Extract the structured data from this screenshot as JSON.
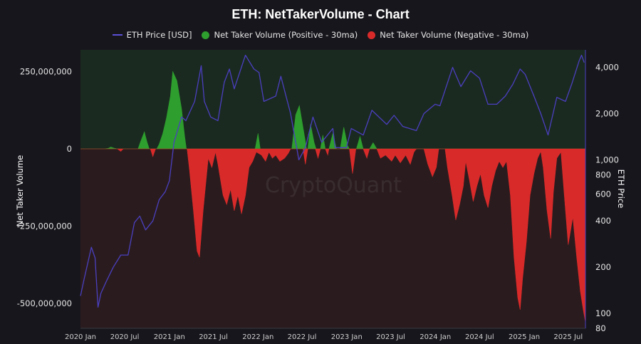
{
  "chart_data": {
    "type": "area",
    "title": "ETH: NetTakerVolume - Chart",
    "watermark": "CryptoQuant",
    "ylabel_left": "Net Taker Volume",
    "ylabel_right": "ETH Price",
    "legend_placement": "top-center",
    "grid": false,
    "y_left": {
      "min": -580000000,
      "max": 320000000,
      "ticks": [
        250000000,
        0,
        -250000000,
        -500000000
      ],
      "tick_labels": [
        "250,000,000",
        "0",
        "-250,000,000",
        "-500,000,000"
      ]
    },
    "y_right": {
      "scale": "log",
      "min": 80,
      "max": 5200,
      "ticks": [
        100,
        200,
        400,
        600,
        800,
        1000,
        2000,
        4000
      ],
      "tick_labels": [
        "100",
        "200",
        "400",
        "600",
        "800",
        "1,000",
        "2,000",
        "4,000"
      ]
    },
    "x": {
      "min": "2020-01-01",
      "max": "2025-09-10",
      "ticks": [
        "2020-01-01",
        "2020-07-01",
        "2021-01-01",
        "2021-07-01",
        "2022-01-01",
        "2022-07-01",
        "2023-01-01",
        "2023-07-01",
        "2024-01-01",
        "2024-07-01",
        "2025-01-01",
        "2025-07-01"
      ],
      "tick_labels": [
        "2020 Jan",
        "2020 Jul",
        "2021 Jan",
        "2021 Jul",
        "2022 Jan",
        "2022 Jul",
        "2023 Jan",
        "2023 Jul",
        "2024 Jan",
        "2024 Jul",
        "2025 Jan",
        "2025 Jul"
      ]
    },
    "series": [
      {
        "name": "ETH Price [USD]",
        "type": "line",
        "axis": "right",
        "color": "#4b3fc0",
        "points": [
          [
            "2020-01-01",
            130
          ],
          [
            "2020-01-15",
            165
          ],
          [
            "2020-02-15",
            270
          ],
          [
            "2020-03-01",
            230
          ],
          [
            "2020-03-13",
            110
          ],
          [
            "2020-03-25",
            135
          ],
          [
            "2020-04-15",
            160
          ],
          [
            "2020-05-15",
            200
          ],
          [
            "2020-06-15",
            240
          ],
          [
            "2020-07-15",
            240
          ],
          [
            "2020-08-10",
            390
          ],
          [
            "2020-09-01",
            430
          ],
          [
            "2020-09-25",
            350
          ],
          [
            "2020-10-25",
            400
          ],
          [
            "2020-11-20",
            550
          ],
          [
            "2020-12-15",
            620
          ],
          [
            "2021-01-01",
            730
          ],
          [
            "2021-01-20",
            1300
          ],
          [
            "2021-02-20",
            1900
          ],
          [
            "2021-03-10",
            1800
          ],
          [
            "2021-04-15",
            2400
          ],
          [
            "2021-05-12",
            4100
          ],
          [
            "2021-05-25",
            2400
          ],
          [
            "2021-06-20",
            1900
          ],
          [
            "2021-07-20",
            1800
          ],
          [
            "2021-08-15",
            3200
          ],
          [
            "2021-09-05",
            3900
          ],
          [
            "2021-09-25",
            2900
          ],
          [
            "2021-11-10",
            4800
          ],
          [
            "2021-12-15",
            3900
          ],
          [
            "2022-01-05",
            3700
          ],
          [
            "2022-01-25",
            2400
          ],
          [
            "2022-03-15",
            2600
          ],
          [
            "2022-04-05",
            3500
          ],
          [
            "2022-05-15",
            2000
          ],
          [
            "2022-06-18",
            1000
          ],
          [
            "2022-07-15",
            1200
          ],
          [
            "2022-08-15",
            1900
          ],
          [
            "2022-09-20",
            1300
          ],
          [
            "2022-11-05",
            1600
          ],
          [
            "2022-11-15",
            1200
          ],
          [
            "2022-12-31",
            1200
          ],
          [
            "2023-01-20",
            1600
          ],
          [
            "2023-03-10",
            1450
          ],
          [
            "2023-04-15",
            2100
          ],
          [
            "2023-06-15",
            1700
          ],
          [
            "2023-07-15",
            1950
          ],
          [
            "2023-08-20",
            1650
          ],
          [
            "2023-10-15",
            1550
          ],
          [
            "2023-11-15",
            2000
          ],
          [
            "2023-12-31",
            2300
          ],
          [
            "2024-01-20",
            2250
          ],
          [
            "2024-03-12",
            4000
          ],
          [
            "2024-04-15",
            3000
          ],
          [
            "2024-05-25",
            3800
          ],
          [
            "2024-07-01",
            3400
          ],
          [
            "2024-08-05",
            2300
          ],
          [
            "2024-09-10",
            2300
          ],
          [
            "2024-10-15",
            2600
          ],
          [
            "2024-11-15",
            3100
          ],
          [
            "2024-12-15",
            3900
          ],
          [
            "2025-01-05",
            3600
          ],
          [
            "2025-02-10",
            2600
          ],
          [
            "2025-03-10",
            2000
          ],
          [
            "2025-04-09",
            1450
          ],
          [
            "2025-05-15",
            2550
          ],
          [
            "2025-06-20",
            2400
          ],
          [
            "2025-07-15",
            3100
          ],
          [
            "2025-08-15",
            4400
          ],
          [
            "2025-08-25",
            4800
          ],
          [
            "2025-09-05",
            4300
          ]
        ]
      },
      {
        "name": "Net Taker Volume (Positive - 30ma)",
        "type": "area",
        "axis": "left",
        "color": "#2e9e2e",
        "points": [
          [
            "2020-01-01",
            0
          ],
          [
            "2020-04-10",
            0
          ],
          [
            "2020-04-25",
            2000000
          ],
          [
            "2020-05-05",
            6000000
          ],
          [
            "2020-05-20",
            2000000
          ],
          [
            "2020-06-01",
            0
          ],
          [
            "2020-08-25",
            0
          ],
          [
            "2020-09-05",
            25000000
          ],
          [
            "2020-09-20",
            55000000
          ],
          [
            "2020-09-30",
            25000000
          ],
          [
            "2020-10-10",
            0
          ],
          [
            "2020-11-10",
            0
          ],
          [
            "2020-11-20",
            15000000
          ],
          [
            "2020-12-05",
            50000000
          ],
          [
            "2020-12-20",
            100000000
          ],
          [
            "2021-01-05",
            170000000
          ],
          [
            "2021-01-15",
            250000000
          ],
          [
            "2021-02-01",
            220000000
          ],
          [
            "2021-02-20",
            130000000
          ],
          [
            "2021-03-05",
            40000000
          ],
          [
            "2021-03-12",
            0
          ],
          [
            "2021-12-20",
            0
          ],
          [
            "2022-01-01",
            50000000
          ],
          [
            "2022-01-10",
            0
          ],
          [
            "2022-05-20",
            0
          ],
          [
            "2022-06-05",
            110000000
          ],
          [
            "2022-06-20",
            140000000
          ],
          [
            "2022-07-05",
            70000000
          ],
          [
            "2022-07-20",
            0
          ],
          [
            "2022-07-25",
            0
          ],
          [
            "2022-08-05",
            80000000
          ],
          [
            "2022-08-20",
            20000000
          ],
          [
            "2022-08-28",
            0
          ],
          [
            "2022-09-15",
            0
          ],
          [
            "2022-09-25",
            45000000
          ],
          [
            "2022-10-05",
            0
          ],
          [
            "2022-10-20",
            0
          ],
          [
            "2022-11-05",
            50000000
          ],
          [
            "2022-11-20",
            0
          ],
          [
            "2022-12-05",
            0
          ],
          [
            "2022-12-20",
            70000000
          ],
          [
            "2023-01-05",
            10000000
          ],
          [
            "2023-01-12",
            0
          ],
          [
            "2023-02-10",
            0
          ],
          [
            "2023-02-25",
            40000000
          ],
          [
            "2023-03-10",
            0
          ],
          [
            "2023-04-05",
            0
          ],
          [
            "2023-04-20",
            20000000
          ],
          [
            "2023-05-05",
            0
          ],
          [
            "2025-09-10",
            0
          ]
        ]
      },
      {
        "name": "Net Taker Volume (Negative - 30ma)",
        "type": "area",
        "axis": "left",
        "color": "#d92a2a",
        "points": [
          [
            "2020-01-01",
            0
          ],
          [
            "2020-06-01",
            0
          ],
          [
            "2020-06-15",
            -8000000
          ],
          [
            "2020-06-25",
            0
          ],
          [
            "2020-10-15",
            0
          ],
          [
            "2020-10-25",
            -25000000
          ],
          [
            "2020-11-05",
            0
          ],
          [
            "2021-03-15",
            0
          ],
          [
            "2021-03-25",
            -70000000
          ],
          [
            "2021-04-10",
            -200000000
          ],
          [
            "2021-04-25",
            -330000000
          ],
          [
            "2021-05-05",
            -350000000
          ],
          [
            "2021-05-20",
            -200000000
          ],
          [
            "2021-06-10",
            -30000000
          ],
          [
            "2021-06-25",
            -60000000
          ],
          [
            "2021-07-10",
            -10000000
          ],
          [
            "2021-07-20",
            -50000000
          ],
          [
            "2021-08-10",
            -150000000
          ],
          [
            "2021-08-25",
            -180000000
          ],
          [
            "2021-09-10",
            -130000000
          ],
          [
            "2021-09-25",
            -200000000
          ],
          [
            "2021-10-10",
            -150000000
          ],
          [
            "2021-10-25",
            -210000000
          ],
          [
            "2021-11-10",
            -150000000
          ],
          [
            "2021-11-25",
            -60000000
          ],
          [
            "2021-12-10",
            -40000000
          ],
          [
            "2021-12-25",
            -10000000
          ],
          [
            "2022-01-15",
            -20000000
          ],
          [
            "2022-02-01",
            -40000000
          ],
          [
            "2022-02-15",
            -10000000
          ],
          [
            "2022-03-01",
            -30000000
          ],
          [
            "2022-03-15",
            -20000000
          ],
          [
            "2022-04-01",
            -40000000
          ],
          [
            "2022-04-20",
            -30000000
          ],
          [
            "2022-05-05",
            -15000000
          ],
          [
            "2022-05-15",
            0
          ],
          [
            "2022-07-05",
            0
          ],
          [
            "2022-07-15",
            -50000000
          ],
          [
            "2022-07-25",
            0
          ],
          [
            "2022-08-25",
            0
          ],
          [
            "2022-09-05",
            -30000000
          ],
          [
            "2022-09-15",
            0
          ],
          [
            "2022-10-05",
            0
          ],
          [
            "2022-10-15",
            -20000000
          ],
          [
            "2022-10-20",
            0
          ],
          [
            "2023-01-12",
            0
          ],
          [
            "2023-01-25",
            -80000000
          ],
          [
            "2023-02-08",
            0
          ],
          [
            "2023-03-10",
            0
          ],
          [
            "2023-03-25",
            -30000000
          ],
          [
            "2023-04-05",
            0
          ],
          [
            "2023-05-05",
            0
          ],
          [
            "2023-05-20",
            -30000000
          ],
          [
            "2023-06-10",
            -20000000
          ],
          [
            "2023-07-05",
            -40000000
          ],
          [
            "2023-07-20",
            -20000000
          ],
          [
            "2023-08-10",
            -45000000
          ],
          [
            "2023-09-01",
            -20000000
          ],
          [
            "2023-09-20",
            -50000000
          ],
          [
            "2023-10-05",
            -10000000
          ],
          [
            "2023-10-15",
            0
          ],
          [
            "2023-11-15",
            0
          ],
          [
            "2023-12-01",
            -50000000
          ],
          [
            "2023-12-20",
            -90000000
          ],
          [
            "2024-01-05",
            -60000000
          ],
          [
            "2024-01-15",
            0
          ],
          [
            "2024-02-10",
            0
          ],
          [
            "2024-02-20",
            -60000000
          ],
          [
            "2024-03-10",
            -150000000
          ],
          [
            "2024-03-25",
            -230000000
          ],
          [
            "2024-04-10",
            -180000000
          ],
          [
            "2024-04-25",
            -120000000
          ],
          [
            "2024-05-05",
            -40000000
          ],
          [
            "2024-05-20",
            -100000000
          ],
          [
            "2024-06-05",
            -170000000
          ],
          [
            "2024-06-20",
            -120000000
          ],
          [
            "2024-07-05",
            -80000000
          ],
          [
            "2024-07-20",
            -150000000
          ],
          [
            "2024-08-05",
            -190000000
          ],
          [
            "2024-08-20",
            -120000000
          ],
          [
            "2024-09-05",
            -70000000
          ],
          [
            "2024-09-20",
            -40000000
          ],
          [
            "2024-10-05",
            -60000000
          ],
          [
            "2024-10-20",
            -40000000
          ],
          [
            "2024-11-05",
            -150000000
          ],
          [
            "2024-11-20",
            -350000000
          ],
          [
            "2024-12-05",
            -480000000
          ],
          [
            "2024-12-15",
            -520000000
          ],
          [
            "2024-12-25",
            -420000000
          ],
          [
            "2025-01-10",
            -300000000
          ],
          [
            "2025-01-25",
            -150000000
          ],
          [
            "2025-02-10",
            -80000000
          ],
          [
            "2025-02-25",
            -30000000
          ],
          [
            "2025-03-10",
            -8000000
          ],
          [
            "2025-03-20",
            -60000000
          ],
          [
            "2025-04-05",
            -200000000
          ],
          [
            "2025-04-20",
            -290000000
          ],
          [
            "2025-05-01",
            -140000000
          ],
          [
            "2025-05-15",
            -30000000
          ],
          [
            "2025-06-01",
            -10000000
          ],
          [
            "2025-06-15",
            -150000000
          ],
          [
            "2025-07-01",
            -310000000
          ],
          [
            "2025-07-20",
            -220000000
          ],
          [
            "2025-08-05",
            -350000000
          ],
          [
            "2025-08-20",
            -460000000
          ],
          [
            "2025-09-01",
            -520000000
          ],
          [
            "2025-09-10",
            -560000000
          ]
        ]
      }
    ]
  }
}
